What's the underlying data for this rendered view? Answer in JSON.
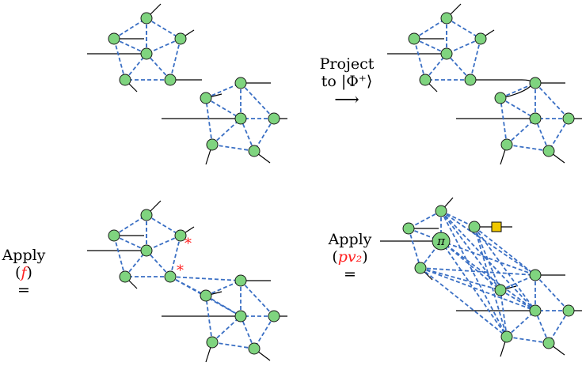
{
  "labels": {
    "project_line1": "Project",
    "project_line2": "to |Φ⁺⟩",
    "project_arrow": "⟶",
    "apply_f_line1": "Apply",
    "apply_f_open": "(",
    "apply_f_fn": "f",
    "apply_f_close": ")",
    "apply_f_eq": "=",
    "apply_pv_line1": "Apply",
    "apply_pv_open": "(",
    "apply_pv_fn": "pv₂",
    "apply_pv_close": ")",
    "apply_pv_eq": "=",
    "pi_symbol": "π",
    "star_symbol": "*"
  },
  "colors": {
    "node_fill": "#7fd47f",
    "node_stroke": "#1a1a1a",
    "edge_dashed": "#3a6fc4",
    "square_fill": "#f0c800",
    "star": "#ff2020"
  }
}
